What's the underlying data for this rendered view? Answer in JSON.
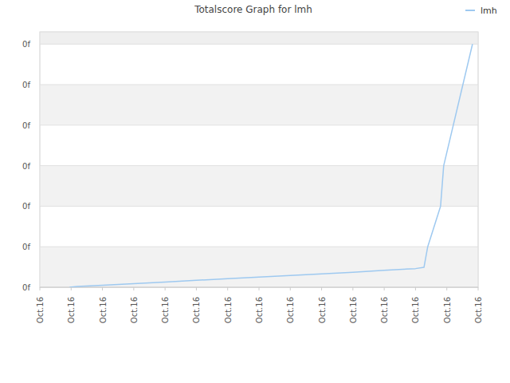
{
  "chart_data": {
    "type": "line",
    "title": "Totalscore Graph for lmh",
    "series": [
      {
        "name": "lmh",
        "color": "#9ec9f0",
        "x": [
          0.95,
          1.2,
          2,
          3,
          4,
          5,
          6,
          7,
          8,
          9,
          10,
          11,
          12,
          12.27,
          12.39,
          12.8,
          12.9,
          13.82
        ],
        "values": [
          0.0,
          0.02,
          0.05,
          0.09,
          0.13,
          0.17,
          0.21,
          0.25,
          0.29,
          0.33,
          0.37,
          0.42,
          0.46,
          0.49,
          1.0,
          2.0,
          3.0,
          6.0
        ]
      }
    ],
    "xlim": [
      0,
      14
    ],
    "xticks": [
      {
        "value": 0,
        "label": "Oct.16"
      },
      {
        "value": 1,
        "label": "Oct.16"
      },
      {
        "value": 2,
        "label": "Oct.16"
      },
      {
        "value": 3,
        "label": "Oct.16"
      },
      {
        "value": 4,
        "label": "Oct.16"
      },
      {
        "value": 5,
        "label": "Oct.16"
      },
      {
        "value": 6,
        "label": "Oct.16"
      },
      {
        "value": 7,
        "label": "Oct.16"
      },
      {
        "value": 8,
        "label": "Oct.16"
      },
      {
        "value": 9,
        "label": "Oct.16"
      },
      {
        "value": 10,
        "label": "Oct.16"
      },
      {
        "value": 11,
        "label": "Oct.16"
      },
      {
        "value": 12,
        "label": "Oct.16"
      },
      {
        "value": 13,
        "label": "Oct.16"
      },
      {
        "value": 14,
        "label": "Oct.16"
      }
    ],
    "ylim": [
      0,
      6.3
    ],
    "yticks": [
      {
        "value": 0,
        "label": "0f"
      },
      {
        "value": 1,
        "label": "0f"
      },
      {
        "value": 2,
        "label": "0f"
      },
      {
        "value": 3,
        "label": "0f"
      },
      {
        "value": 4,
        "label": "0f"
      },
      {
        "value": 5,
        "label": "0f"
      },
      {
        "value": 6,
        "label": "0f"
      }
    ],
    "grid": true,
    "legend": "top-right"
  }
}
